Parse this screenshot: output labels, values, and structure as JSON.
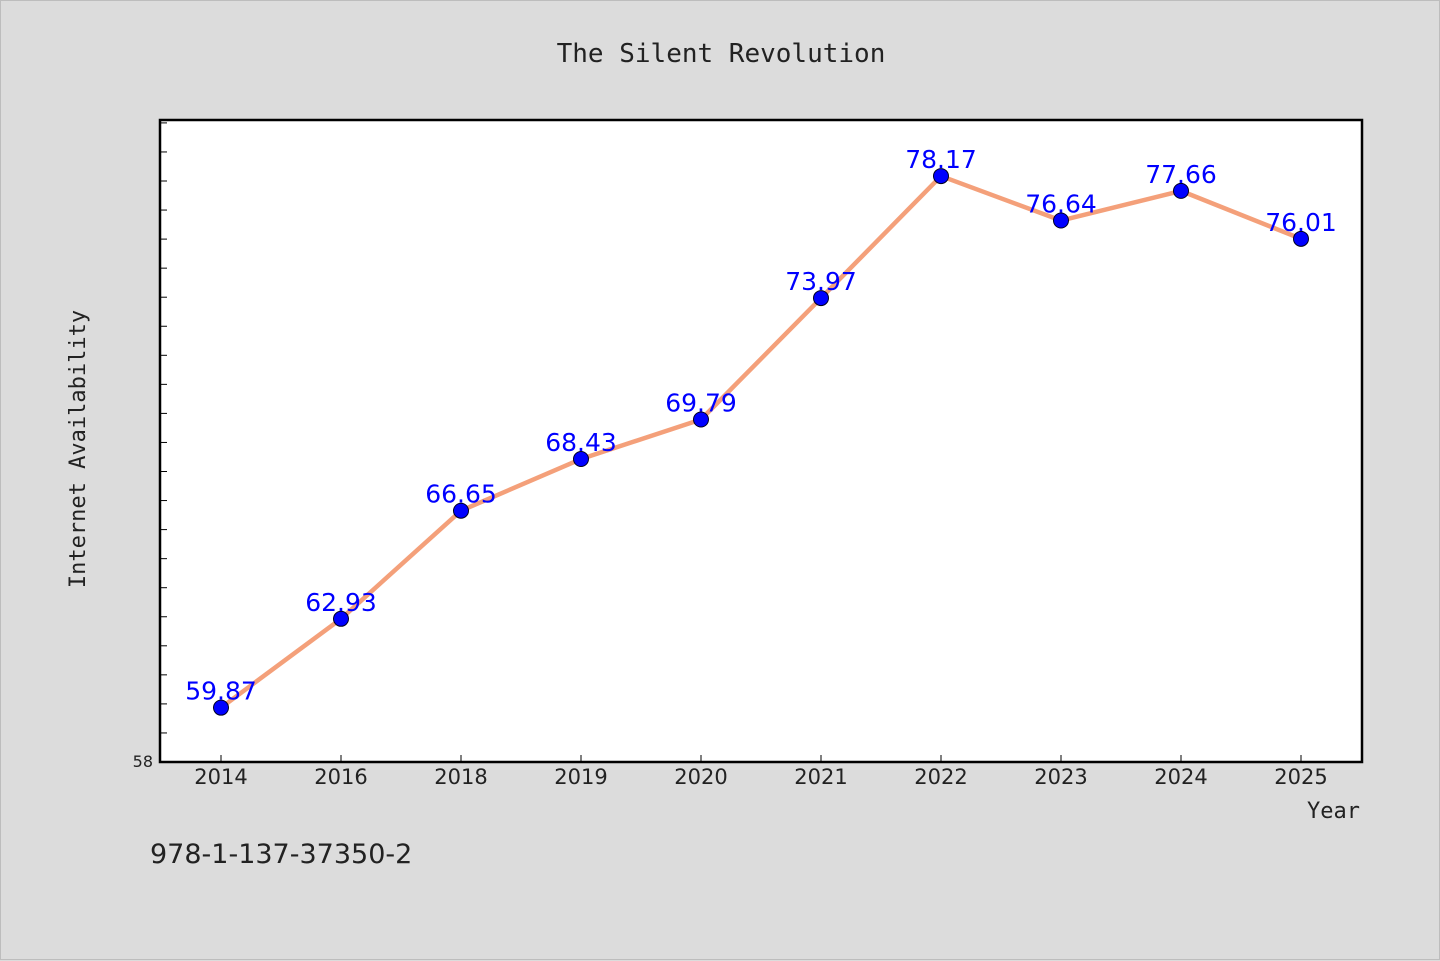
{
  "chart_data": {
    "type": "line",
    "title": "The Silent Revolution",
    "xlabel": "Year",
    "ylabel": "Internet Availability",
    "categories": [
      "2014",
      "2016",
      "2018",
      "2019",
      "2020",
      "2021",
      "2022",
      "2023",
      "2024",
      "2025"
    ],
    "series": [
      {
        "values": [
          59.87,
          62.93,
          66.65,
          68.43,
          69.79,
          73.97,
          78.17,
          76.64,
          77.66,
          76.01
        ]
      }
    ],
    "data_labels": [
      "59.87",
      "62.93",
      "66.65",
      "68.43",
      "69.79",
      "73.97",
      "78.17",
      "76.64",
      "77.66",
      "76.01"
    ],
    "ylim": [
      58,
      80.1
    ],
    "y_tick_labels": [
      "58"
    ],
    "grid": false,
    "legend": "none",
    "colors": {
      "line": "#f4a07a",
      "marker": "#0000ff",
      "data_label": "#0000ff",
      "plot_background": "#ffffff",
      "page_background": "#dcdcdc"
    }
  },
  "footer": {
    "isbn": "978-1-137-37350-2"
  }
}
